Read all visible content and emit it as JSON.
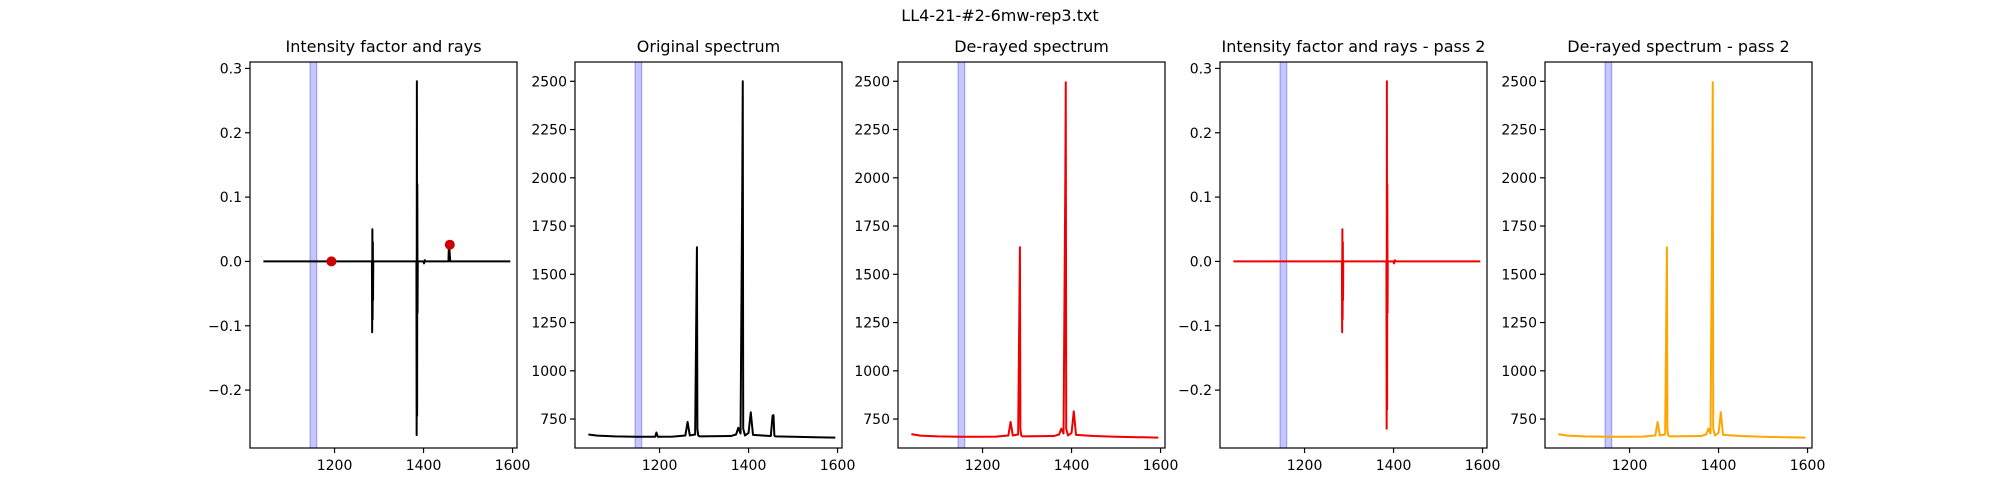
{
  "figure": {
    "title": "LL4-21-#2-6mw-rep3.txt"
  },
  "chart_data": [
    {
      "type": "line",
      "title": "Intensity factor and rays",
      "xlim": [
        1010,
        1610
      ],
      "ylim": [
        -0.29,
        0.31
      ],
      "xticks": [
        1200,
        1400,
        1600
      ],
      "yticks": [
        -0.2,
        -0.1,
        0.0,
        0.1,
        0.2,
        0.3
      ],
      "ytick_labels": [
        "−0.2",
        "−0.1",
        "0.0",
        "0.1",
        "0.2",
        "0.3"
      ],
      "band": [
        1145,
        1160
      ],
      "line_color": "#000000",
      "series": [
        {
          "x": [
            1040,
            1284,
            1284.5,
            1285,
            1285.5,
            1286,
            1286.5,
            1287,
            1288,
            1384,
            1384.5,
            1385,
            1385.5,
            1386,
            1386.5,
            1387,
            1400,
            1401,
            1402,
            1403,
            1404,
            1456,
            1457,
            1458,
            1459,
            1460,
            1595
          ],
          "y": [
            0,
            0,
            -0.11,
            0.05,
            -0.09,
            0.03,
            -0.06,
            0.0,
            0,
            0,
            -0.27,
            0.28,
            -0.24,
            0.12,
            -0.08,
            0.0,
            0,
            -0.003,
            0.0,
            0.002,
            0,
            0,
            0.026,
            0.02,
            0.01,
            0,
            0
          ]
        }
      ],
      "points": [
        {
          "x": 1193,
          "y": 0.0
        },
        {
          "x": 1459,
          "y": 0.026
        }
      ],
      "point_color": "#cc0000"
    },
    {
      "type": "line",
      "title": "Original spectrum",
      "xlim": [
        1010,
        1610
      ],
      "ylim": [
        600,
        2600
      ],
      "xticks": [
        1200,
        1400,
        1600
      ],
      "yticks": [
        750,
        1000,
        1250,
        1500,
        1750,
        2000,
        2250,
        2500
      ],
      "band": [
        1145,
        1160
      ],
      "line_color": "#000000",
      "series": [
        {
          "x": [
            1040,
            1060,
            1100,
            1150,
            1190,
            1193,
            1196,
            1230,
            1258,
            1263,
            1268,
            1280,
            1284,
            1285,
            1287,
            1290,
            1360,
            1372,
            1377,
            1382,
            1386,
            1387,
            1388,
            1392,
            1400,
            1405,
            1410,
            1450,
            1454,
            1456,
            1458,
            1460,
            1500,
            1550,
            1595
          ],
          "y": [
            670,
            664,
            660,
            658,
            658,
            680,
            658,
            659,
            665,
            735,
            665,
            670,
            1640,
            700,
            665,
            660,
            662,
            670,
            705,
            675,
            2000,
            2500,
            700,
            665,
            678,
            785,
            668,
            662,
            768,
            770,
            665,
            660,
            658,
            656,
            654
          ]
        }
      ]
    },
    {
      "type": "line",
      "title": "De-rayed spectrum",
      "xlim": [
        1010,
        1610
      ],
      "ylim": [
        600,
        2600
      ],
      "xticks": [
        1200,
        1400,
        1600
      ],
      "yticks": [
        750,
        1000,
        1250,
        1500,
        1750,
        2000,
        2250,
        2500
      ],
      "band": [
        1145,
        1160
      ],
      "line_color": "#ee0000",
      "series": [
        {
          "x": [
            1040,
            1060,
            1100,
            1150,
            1200,
            1230,
            1258,
            1263,
            1268,
            1280,
            1284,
            1285,
            1287,
            1290,
            1360,
            1372,
            1377,
            1382,
            1386,
            1387,
            1388,
            1392,
            1400,
            1405,
            1410,
            1450,
            1500,
            1550,
            1595
          ],
          "y": [
            672,
            664,
            660,
            658,
            658,
            659,
            665,
            735,
            665,
            670,
            1640,
            700,
            665,
            660,
            662,
            670,
            700,
            675,
            2000,
            2495,
            700,
            665,
            678,
            790,
            668,
            662,
            658,
            656,
            654
          ]
        }
      ]
    },
    {
      "type": "line",
      "title": "Intensity factor and rays - pass 2",
      "xlim": [
        1010,
        1610
      ],
      "ylim": [
        -0.29,
        0.31
      ],
      "xticks": [
        1200,
        1400,
        1600
      ],
      "yticks": [
        -0.2,
        -0.1,
        0.0,
        0.1,
        0.2,
        0.3
      ],
      "ytick_labels": [
        "−0.2",
        "−0.1",
        "0.0",
        "0.1",
        "0.2",
        "0.3"
      ],
      "band": [
        1145,
        1160
      ],
      "line_color": "#ee0000",
      "series": [
        {
          "x": [
            1040,
            1284,
            1284.5,
            1285,
            1285.5,
            1286,
            1286.5,
            1287,
            1288,
            1384,
            1384.5,
            1385,
            1385.5,
            1386,
            1386.5,
            1387,
            1400,
            1401,
            1402,
            1403,
            1404,
            1595
          ],
          "y": [
            0,
            0,
            -0.11,
            0.05,
            -0.09,
            0.03,
            -0.06,
            0.0,
            0,
            0,
            -0.26,
            0.28,
            -0.23,
            0.12,
            -0.08,
            0.0,
            0,
            -0.003,
            0.0,
            0.002,
            0,
            0
          ]
        }
      ]
    },
    {
      "type": "line",
      "title": "De-rayed spectrum - pass 2",
      "xlim": [
        1010,
        1610
      ],
      "ylim": [
        600,
        2600
      ],
      "xticks": [
        1200,
        1400,
        1600
      ],
      "yticks": [
        750,
        1000,
        1250,
        1500,
        1750,
        2000,
        2250,
        2500
      ],
      "band": [
        1145,
        1160
      ],
      "line_color": "#ffa500",
      "series": [
        {
          "x": [
            1040,
            1060,
            1100,
            1150,
            1200,
            1230,
            1258,
            1263,
            1268,
            1280,
            1284,
            1285,
            1287,
            1290,
            1360,
            1372,
            1377,
            1382,
            1386,
            1387,
            1388,
            1392,
            1400,
            1405,
            1410,
            1450,
            1500,
            1550,
            1595
          ],
          "y": [
            672,
            664,
            660,
            658,
            658,
            659,
            665,
            735,
            665,
            670,
            1640,
            700,
            665,
            660,
            662,
            670,
            700,
            675,
            2000,
            2495,
            700,
            665,
            678,
            785,
            668,
            662,
            658,
            656,
            654
          ]
        }
      ]
    }
  ]
}
